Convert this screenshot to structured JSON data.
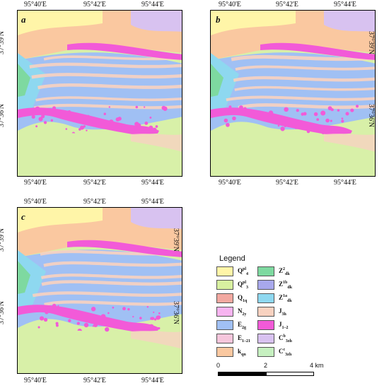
{
  "panels": [
    {
      "letter": "a",
      "top_ticks": [
        "95°40'E",
        "95°42'E",
        "95°44'E"
      ],
      "bottom_ticks": [
        "95°40'E",
        "95°42'E",
        "95°44'E"
      ],
      "left_ticks": [
        "37°39'N",
        "37°36'N"
      ],
      "right_ticks": []
    },
    {
      "letter": "b",
      "top_ticks": [
        "95°40'E",
        "95°42'E",
        "95°44'E"
      ],
      "bottom_ticks": [
        "95°40'E",
        "95°42'E",
        "95°44'E"
      ],
      "left_ticks": [],
      "right_ticks": [
        "37°39'N",
        "37°36'N"
      ]
    },
    {
      "letter": "c",
      "top_ticks": [
        "95°40'E",
        "95°42'E",
        "95°44'E"
      ],
      "bottom_ticks": [
        "95°40'E",
        "95°42'E",
        "95°44'E"
      ],
      "left_ticks": [
        "37°39'N",
        "37°36'N"
      ],
      "right_ticks": [
        "37°39'N",
        "37°36'N"
      ]
    }
  ],
  "legend": {
    "title": "Legend",
    "items": [
      {
        "base": "Q",
        "sup": "pl",
        "sub": "4",
        "color": "#fff5a8"
      },
      {
        "base": "Z",
        "sup": "2",
        "sub": "dk",
        "color": "#7ed9a0"
      },
      {
        "base": "Q",
        "sup": "pl",
        "sub": "3",
        "color": "#d8f0a0"
      },
      {
        "base": "Z",
        "sup": "1b",
        "sub": "dk",
        "color": "#a8a8ec"
      },
      {
        "base": "Q",
        "sup": "",
        "sub": "1q",
        "color": "#f2a8a0"
      },
      {
        "base": "Z",
        "sup": "1a",
        "sub": "dk",
        "color": "#8ed8f0"
      },
      {
        "base": "N",
        "sup": "",
        "sub": "2y",
        "color": "#f7b4f0"
      },
      {
        "base": "J",
        "sup": "",
        "sub": "3h",
        "color": "#f8d2c0"
      },
      {
        "base": "E",
        "sup": "",
        "sub": "2g",
        "color": "#a0c0f4"
      },
      {
        "base": "J",
        "sup": "",
        "sub": "1–2",
        "color": "#f25ad8"
      },
      {
        "base": "E",
        "sup": "",
        "sub": "1–21",
        "color": "#f6c6dc"
      },
      {
        "base": "C",
        "sup": "b",
        "sub": "3zh",
        "color": "#d8c2f0"
      },
      {
        "base": "k",
        "sup": "",
        "sub": "qn",
        "color": "#fac8a0"
      },
      {
        "base": "C",
        "sup": "c",
        "sub": "3zh",
        "color": "#c6f0c0"
      }
    ]
  },
  "scalebar": {
    "labels": [
      "0",
      "2",
      "4 km"
    ]
  },
  "colors": {
    "background_land": "#d8f0a8",
    "e2g": "#a0c0f4",
    "j12": "#f25ad8",
    "j3h": "#f8d2c0",
    "kqn": "#fac8a0",
    "z2dk": "#7ed9a0",
    "z1adk": "#8ed8f0",
    "q4": "#fff5a8",
    "c3zh": "#d8c2f0"
  }
}
